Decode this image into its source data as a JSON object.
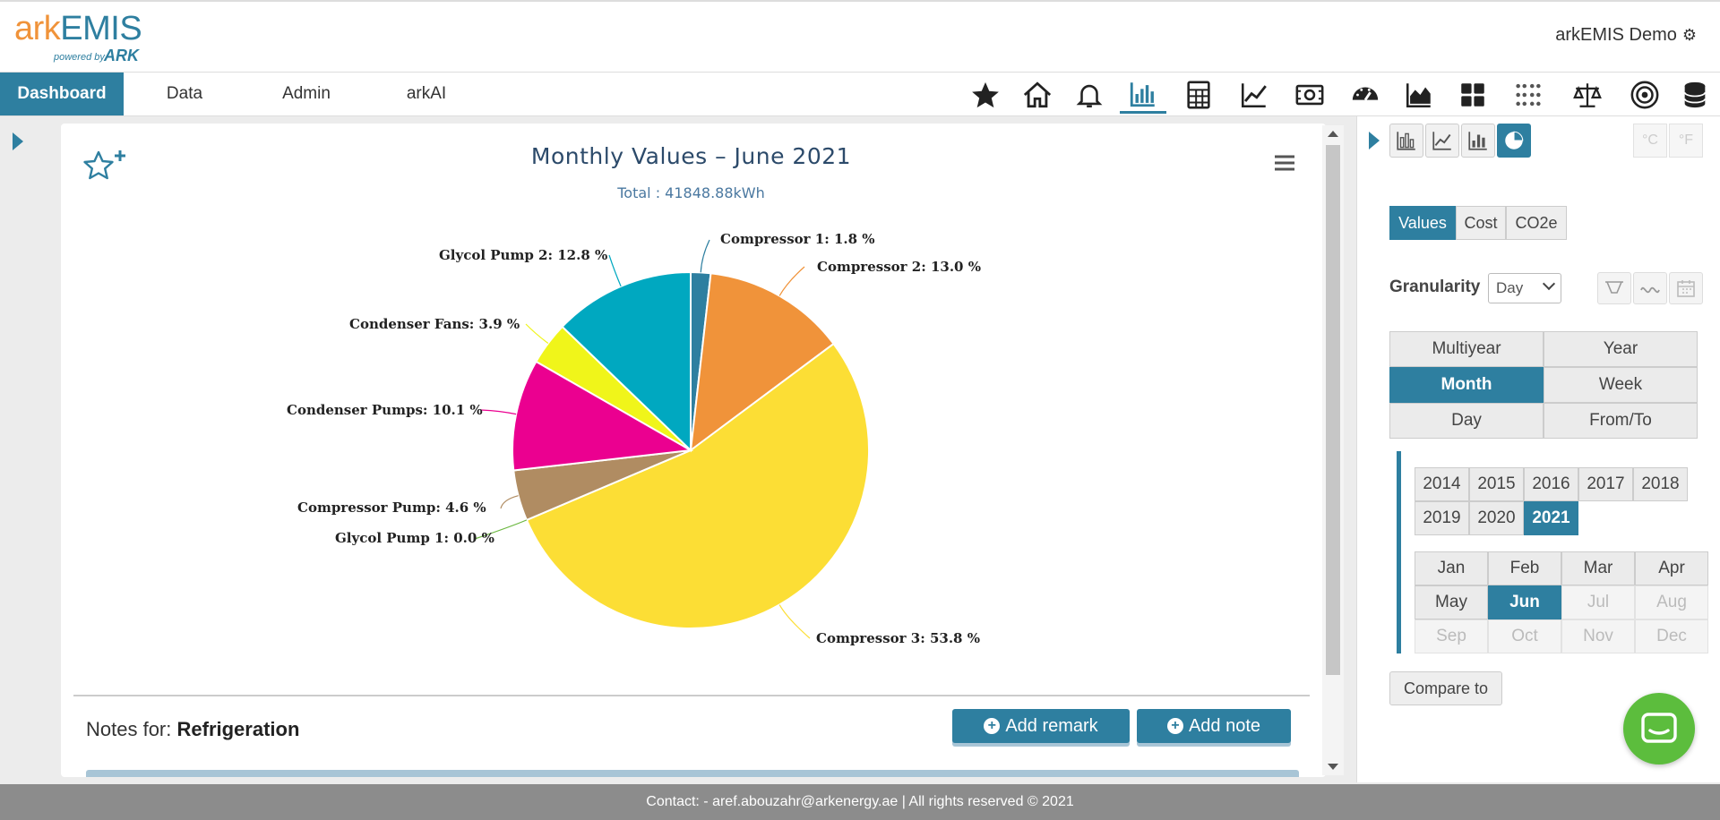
{
  "header": {
    "logo_ark": "ark",
    "logo_emis": "EMIS",
    "logo_powered": "powered by",
    "logo_company": "ARK",
    "user_label": "arkEMIS Demo"
  },
  "nav": {
    "tabs": [
      {
        "label": "Dashboard",
        "active": true
      },
      {
        "label": "Data",
        "active": false
      },
      {
        "label": "Admin",
        "active": false
      },
      {
        "label": "arkAI",
        "active": false
      }
    ],
    "icons": [
      "star-icon",
      "home-icon",
      "bell-icon",
      "bar-chart-icon",
      "calculator-icon",
      "line-chart-icon",
      "money-icon",
      "gauge-icon",
      "area-chart-icon",
      "grid-icon",
      "dot-grid-icon",
      "scale-icon",
      "target-icon",
      "database-icon"
    ],
    "active_icon": "bar-chart-icon"
  },
  "chart": {
    "title": "Monthly Values – June 2021",
    "subtitle": "Total : 41848.88kWh",
    "labels": {
      "compressor1": "Compressor 1: 1.8 %",
      "compressor2": "Compressor 2: 13.0 %",
      "compressor3": "Compressor 3: 53.8 %",
      "glycol1": "Glycol Pump 1: 0.0 %",
      "compressor_pump": "Compressor Pump: 4.6 %",
      "condenser_pumps": "Condenser Pumps: 10.1 %",
      "condenser_fans": "Condenser Fans: 3.9 %",
      "glycol2": "Glycol Pump 2: 12.8 %"
    }
  },
  "chart_data": {
    "type": "pie",
    "title": "Monthly Values – June 2021",
    "subtitle": "Total : 41848.88kWh",
    "slices": [
      {
        "name": "Compressor 1",
        "value": 1.8,
        "color": "#2e7fa0"
      },
      {
        "name": "Compressor 2",
        "value": 13.0,
        "color": "#f0933a"
      },
      {
        "name": "Compressor 3",
        "value": 53.8,
        "color": "#fcde35"
      },
      {
        "name": "Glycol Pump 1",
        "value": 0.0,
        "color": "#6ab73f"
      },
      {
        "name": "Compressor Pump",
        "value": 4.6,
        "color": "#b08c62"
      },
      {
        "name": "Condenser Pumps",
        "value": 10.1,
        "color": "#eb0090"
      },
      {
        "name": "Condenser Fans",
        "value": 3.9,
        "color": "#f0f51a"
      },
      {
        "name": "Glycol Pump 2",
        "value": 12.8,
        "color": "#00a8c0"
      }
    ],
    "unit": "%"
  },
  "notes": {
    "prefix": "Notes for:",
    "subject": "Refrigeration",
    "add_remark": "Add remark",
    "add_note": "Add note"
  },
  "right_panel": {
    "value_types": [
      {
        "label": "Values",
        "active": true
      },
      {
        "label": "Cost",
        "active": false
      },
      {
        "label": "CO2e",
        "active": false
      }
    ],
    "temp_c": "°C",
    "temp_f": "°F",
    "granularity_label": "Granularity",
    "granularity_value": "Day",
    "periods": [
      {
        "label": "Multiyear",
        "active": false
      },
      {
        "label": "Year",
        "active": false
      },
      {
        "label": "Month",
        "active": true
      },
      {
        "label": "Week",
        "active": false
      },
      {
        "label": "Day",
        "active": false
      },
      {
        "label": "From/To",
        "active": false
      }
    ],
    "years": [
      {
        "label": "2014",
        "active": false
      },
      {
        "label": "2015",
        "active": false
      },
      {
        "label": "2016",
        "active": false
      },
      {
        "label": "2017",
        "active": false
      },
      {
        "label": "2018",
        "active": false
      },
      {
        "label": "2019",
        "active": false
      },
      {
        "label": "2020",
        "active": false
      },
      {
        "label": "2021",
        "active": true
      }
    ],
    "months": [
      {
        "label": "Jan",
        "state": "normal"
      },
      {
        "label": "Feb",
        "state": "normal"
      },
      {
        "label": "Mar",
        "state": "normal"
      },
      {
        "label": "Apr",
        "state": "normal"
      },
      {
        "label": "May",
        "state": "normal"
      },
      {
        "label": "Jun",
        "state": "active"
      },
      {
        "label": "Jul",
        "state": "disabled"
      },
      {
        "label": "Aug",
        "state": "disabled"
      },
      {
        "label": "Sep",
        "state": "disabled"
      },
      {
        "label": "Oct",
        "state": "disabled"
      },
      {
        "label": "Nov",
        "state": "disabled"
      },
      {
        "label": "Dec",
        "state": "disabled"
      }
    ],
    "compare_label": "Compare to"
  },
  "footer": {
    "text": "Contact: - aref.abouzahr@arkenergy.ae | All rights reserved © 2021"
  },
  "colors": {
    "accent": "#2e7fa0",
    "chat": "#5cbd3d",
    "footer_bg": "#8c8c8c"
  }
}
